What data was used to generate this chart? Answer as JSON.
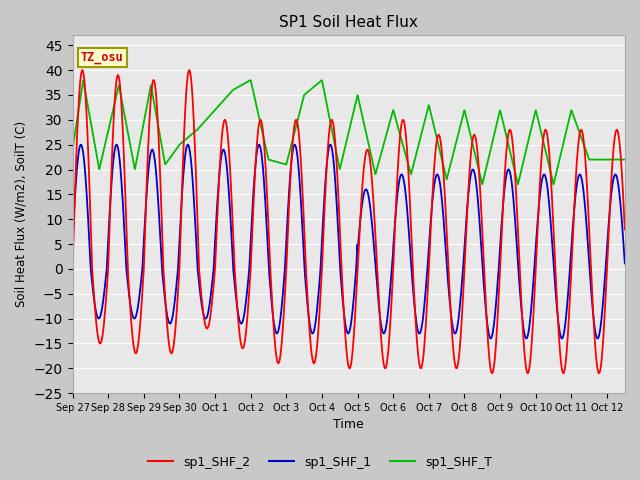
{
  "title": "SP1 Soil Heat Flux",
  "xlabel": "Time",
  "ylabel": "Soil Heat Flux (W/m2), SoilT (C)",
  "ylim": [
    -25,
    47
  ],
  "yticks": [
    -25,
    -20,
    -15,
    -10,
    -5,
    0,
    5,
    10,
    15,
    20,
    25,
    30,
    35,
    40,
    45
  ],
  "line_colors": [
    "#ff0000",
    "#0000cc",
    "#00bb00"
  ],
  "line_labels": [
    "sp1_SHF_2",
    "sp1_SHF_1",
    "sp1_SHF_T"
  ],
  "tz_label": "TZ_osu",
  "tz_bg": "#ffffcc",
  "tz_border": "#999900",
  "tick_labels": [
    "Sep 27",
    "Sep 28",
    "Sep 29",
    "Sep 30",
    "Oct 1",
    "Oct 2",
    "Oct 3",
    "Oct 4",
    "Oct 5",
    "Oct 6",
    "Oct 7",
    "Oct 8",
    "Oct 9",
    "Oct 10",
    "Oct 11",
    "Oct 12"
  ],
  "tick_positions": [
    0,
    1,
    2,
    3,
    4,
    5,
    6,
    7,
    8,
    9,
    10,
    11,
    12,
    13,
    14,
    15
  ],
  "xlim": [
    0,
    15.5
  ],
  "fig_bg": "#c8c8c8",
  "plot_bg": "#e8e8e8",
  "grid_color": "#ffffff"
}
